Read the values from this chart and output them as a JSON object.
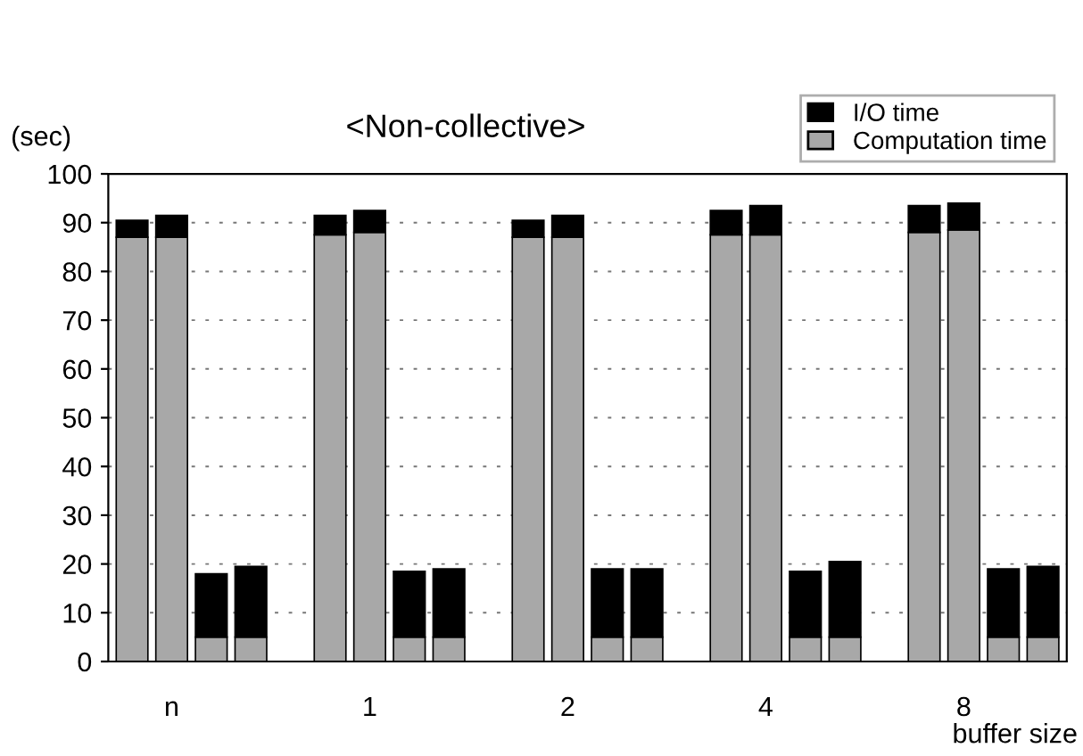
{
  "chart_data": {
    "type": "bar",
    "title": "<Non-collective>",
    "ylabel": "(sec)",
    "xlabel": "buffer size",
    "categories": [
      null,
      "n",
      null,
      null,
      null,
      null,
      "1",
      null,
      null,
      null,
      null,
      "2",
      null,
      null,
      null,
      null,
      "4",
      null,
      null,
      null,
      null,
      "8",
      null,
      null
    ],
    "stacked": true,
    "series": [
      {
        "name": "Computation time",
        "color": "#a8a8a8",
        "values": [
          87,
          87,
          5,
          5,
          null,
          87.5,
          88,
          5,
          5,
          null,
          87,
          87,
          5,
          5,
          null,
          87.5,
          87.5,
          5,
          5,
          null,
          88,
          88.5,
          5,
          5
        ]
      },
      {
        "name": "I/O time",
        "color": "#000000",
        "values": [
          3.5,
          4.5,
          13,
          14.5,
          null,
          4,
          4.5,
          13.5,
          14,
          null,
          3.5,
          4.5,
          14,
          14,
          null,
          5,
          6,
          13.5,
          15.5,
          null,
          5.5,
          5.5,
          14,
          14.5
        ]
      }
    ],
    "ylim": [
      0,
      100
    ],
    "yticks": [
      0,
      10,
      20,
      30,
      40,
      50,
      60,
      70,
      80,
      90,
      100
    ],
    "grid": "y",
    "legend": "top right"
  }
}
